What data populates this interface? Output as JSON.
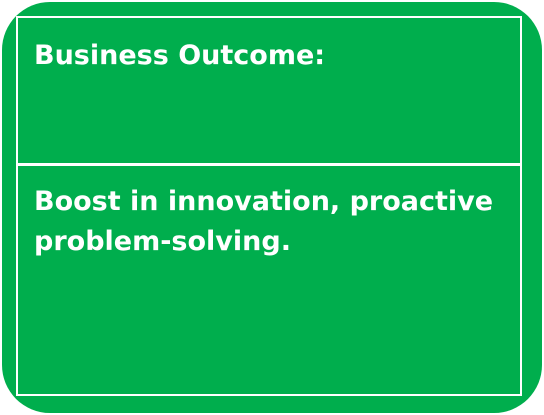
{
  "card": {
    "header": "Business Outcome:",
    "body": "Boost in innovation, proactive problem-solving."
  },
  "colors": {
    "background": "#00AE4D",
    "text": "#FFFFFF",
    "grid_lines": "#FFFFFF"
  }
}
